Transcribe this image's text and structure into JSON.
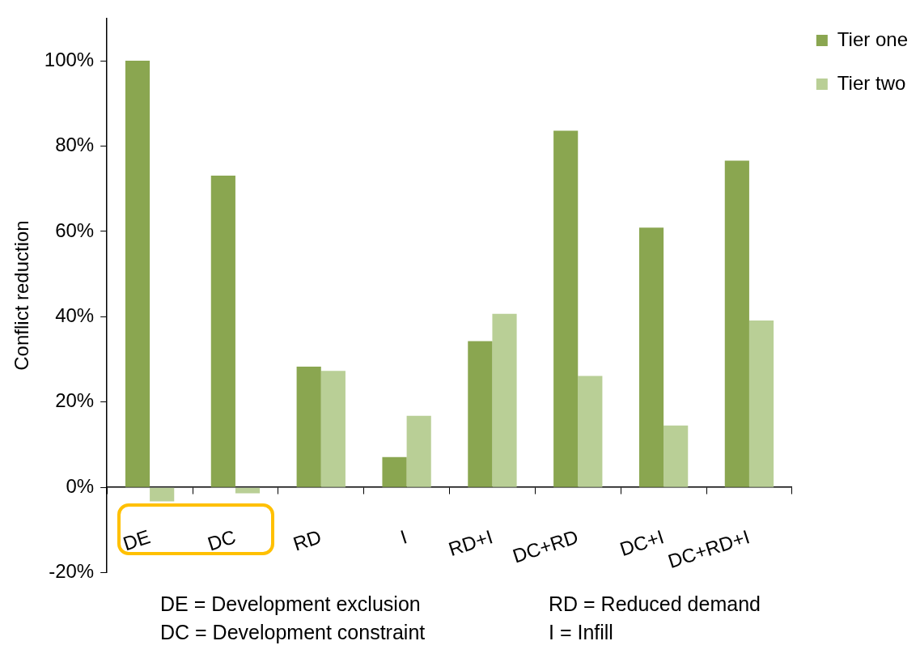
{
  "chart_data": {
    "type": "bar",
    "ylabel": "Conflict reduction",
    "categories": [
      "DE",
      "DC",
      "RD",
      "I",
      "RD+I",
      "DC+RD",
      "DC+I",
      "DC+RD+I"
    ],
    "series": [
      {
        "name": "Tier one",
        "color": "#8aa650",
        "values": [
          100,
          73.1,
          28.3,
          7.1,
          34.3,
          83.6,
          60.9,
          76.6
        ]
      },
      {
        "name": "Tier two",
        "color": "#b9cf96",
        "values": [
          -3.3,
          -1.4,
          27.3,
          16.8,
          40.7,
          26.1,
          14.5,
          39.1
        ]
      }
    ],
    "ylim": [
      -20,
      110
    ],
    "yticks": [
      {
        "value": -20,
        "label": "-20%"
      },
      {
        "value": 0,
        "label": "0%"
      },
      {
        "value": 20,
        "label": "20%"
      },
      {
        "value": 40,
        "label": "40%"
      },
      {
        "value": 60,
        "label": "60%"
      },
      {
        "value": 80,
        "label": "80%"
      },
      {
        "value": 100,
        "label": "100%"
      }
    ],
    "grid": false,
    "legend": "top right",
    "annotations": [
      "DE = Development exclusion",
      "RD = Reduced demand",
      "DC = Development constraint",
      "I = Infill"
    ]
  }
}
